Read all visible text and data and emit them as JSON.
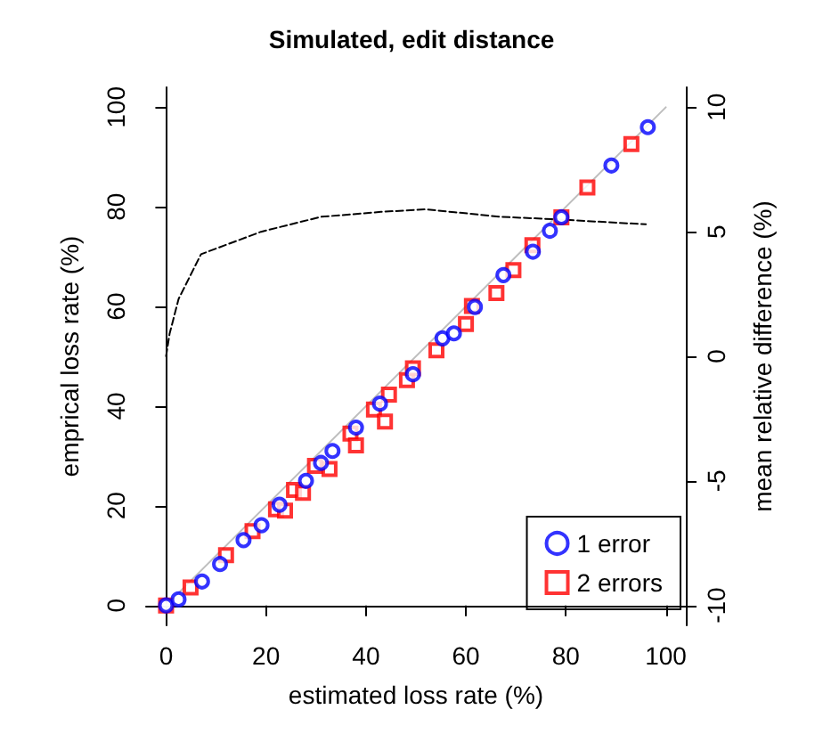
{
  "chart_data": {
    "type": "scatter",
    "title": "Simulated, edit distance",
    "xlabel": "estimated loss rate (%)",
    "ylabel": "emprical loss rate (%)",
    "y2label": "mean relative difference (%)",
    "xlim": [
      -4,
      104
    ],
    "xticks": [
      0,
      20,
      40,
      60,
      80,
      100
    ],
    "ylim": [
      -4,
      104
    ],
    "yticks": [
      0,
      20,
      40,
      60,
      80,
      100
    ],
    "y2lim": [
      -10.8,
      10.8
    ],
    "y2ticks": [
      -10,
      -5,
      0,
      5,
      10
    ],
    "grid": false,
    "legend": "bottom right",
    "series": [
      {
        "type": "line",
        "color": "#bebebe",
        "marker": "none",
        "line_style": "solid",
        "x": [
          0,
          100
        ],
        "values": [
          0,
          100
        ]
      },
      {
        "type": "line",
        "axis": "y2",
        "color": "#000000",
        "marker": "none",
        "line_style": "dashed",
        "x": [
          0,
          0.7,
          2.5,
          7,
          19,
          31,
          43,
          52,
          67,
          78,
          96
        ],
        "values": [
          0,
          0.9,
          2.3,
          4.1,
          5.0,
          5.6,
          5.8,
          5.9,
          5.6,
          5.5,
          5.3
        ]
      },
      {
        "name": "1 error",
        "color": "#0000ff",
        "marker": "circle",
        "x": [
          0,
          2.5,
          7.2,
          10.8,
          15.5,
          19.1,
          22.7,
          28,
          31,
          33.3,
          38,
          42.8,
          49.4,
          55.3,
          57.6,
          61.8,
          67.5,
          73.4,
          76.8,
          79.1,
          89.1,
          96.4
        ],
        "values": [
          0,
          1.2,
          4.8,
          8.3,
          13.1,
          16.1,
          20.2,
          25,
          28.6,
          31,
          35.7,
          40.5,
          46.4,
          53.6,
          54.6,
          59.9,
          66.3,
          71,
          75.2,
          77.9,
          88.3,
          96
        ]
      },
      {
        "name": "2 errors",
        "color": "#ff0000",
        "marker": "square",
        "x": [
          0,
          4.9,
          12,
          17.3,
          22,
          23.8,
          25.6,
          27.4,
          29.8,
          32.7,
          36.9,
          38,
          41.6,
          43.8,
          44.6,
          48.2,
          49.4,
          54.1,
          60,
          61.2,
          66.1,
          69.5,
          73.3,
          79.1,
          84.3,
          93.1
        ],
        "values": [
          0,
          3.6,
          10.1,
          14.9,
          19.3,
          19,
          23.2,
          22.6,
          28,
          27.4,
          34.5,
          32.1,
          39.3,
          36.9,
          42.3,
          45.2,
          47.6,
          51.2,
          56.5,
          60.1,
          62.7,
          67.3,
          72.3,
          77.9,
          83.9,
          92.6
        ]
      }
    ]
  }
}
